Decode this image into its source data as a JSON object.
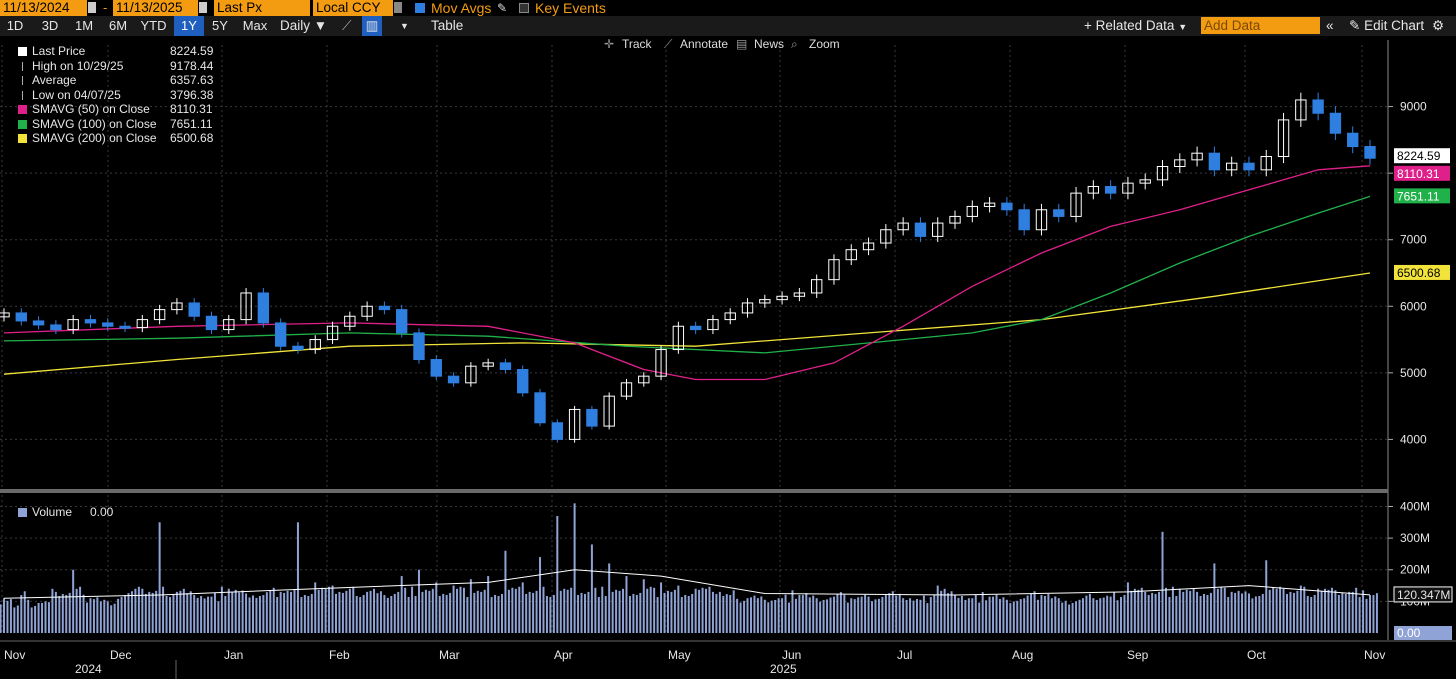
{
  "toolbar": {
    "start_date": "11/13/2024",
    "dash": "-",
    "end_date": "11/13/2025",
    "field": "Last Px",
    "currency": "Local CCY",
    "mov_avgs": "Mov Avgs",
    "key_events": "Key Events",
    "periods": [
      "1D",
      "3D",
      "1M",
      "6M",
      "YTD",
      "1Y",
      "5Y",
      "Max"
    ],
    "active_period": "1Y",
    "frequency": "Daily",
    "table": "Table",
    "related_data": "+ Related Data",
    "add_data_placeholder": "Add Data",
    "edit_chart": "Edit Chart",
    "tools": [
      "Track",
      "Annotate",
      "News",
      "Zoom"
    ]
  },
  "colors": {
    "sma50": "#e0208a",
    "sma100": "#21b14a",
    "sma200": "#f2e33a",
    "up_candle": "#ffffff",
    "down_candle": "#2f7fe0",
    "volume": "#8fa3d6",
    "volume_avg": "#ffffff",
    "background": "#000000",
    "accent": "#f39c12"
  },
  "legend": [
    {
      "name": "Last Price",
      "value": "8224.59",
      "color": "#ffffff"
    },
    {
      "name": "High on 10/29/25",
      "value": "9178.44",
      "color": ""
    },
    {
      "name": "Average",
      "value": "6357.63",
      "color": ""
    },
    {
      "name": "Low on 04/07/25",
      "value": "3796.38",
      "color": ""
    },
    {
      "name": "SMAVG (50)  on Close",
      "value": "8110.31",
      "color": "#e0208a"
    },
    {
      "name": "SMAVG (100)  on Close",
      "value": "7651.11",
      "color": "#21b14a"
    },
    {
      "name": "SMAVG (200)  on Close",
      "value": "6500.68",
      "color": "#f2e33a"
    }
  ],
  "volume_legend": {
    "name": "Volume",
    "value": "0.00"
  },
  "chart_data": {
    "type": "candlestick",
    "price_axis": {
      "ticks": [
        "9000",
        "8000",
        "7000",
        "6000",
        "5000",
        "4000"
      ],
      "ylim": [
        3300,
        9700
      ]
    },
    "volume_axis": {
      "ticks": [
        "400M",
        "300M",
        "200M",
        "100M"
      ],
      "ylim": [
        0,
        430
      ]
    },
    "x_months": [
      "Nov",
      "Dec",
      "Jan",
      "Feb",
      "Mar",
      "Apr",
      "May",
      "Jun",
      "Jul",
      "Aug",
      "Sep",
      "Oct",
      "Nov"
    ],
    "x_years": [
      "2024",
      "2025"
    ],
    "price_labels": {
      "last": "8224.59",
      "sma50": "8110.31",
      "sma100": "7651.11",
      "sma200": "6500.68"
    },
    "volume_labels": {
      "avg": "120.347M",
      "current": "0.00"
    },
    "weekly_close": [
      5900,
      5780,
      5720,
      5650,
      5800,
      5750,
      5700,
      5680,
      5800,
      5950,
      6050,
      5850,
      5650,
      5800,
      6200,
      5750,
      5400,
      5350,
      5500,
      5700,
      5850,
      6000,
      5950,
      5600,
      5200,
      4950,
      4850,
      5100,
      5150,
      5050,
      4700,
      4250,
      4000,
      4450,
      4200,
      4650,
      4850,
      4950,
      5350,
      5700,
      5650,
      5800,
      5900,
      6050,
      6100,
      6150,
      6200,
      6400,
      6700,
      6850,
      6950,
      7150,
      7250,
      7050,
      7250,
      7350,
      7500,
      7550,
      7450,
      7150,
      7450,
      7350,
      7700,
      7800,
      7700,
      7850,
      7900,
      8100,
      8200,
      8300,
      8050,
      8150,
      8050,
      8250,
      8800,
      9100,
      8900,
      8600,
      8400,
      8224.59
    ],
    "sma50": [
      [
        0,
        5600
      ],
      [
        10,
        5700
      ],
      [
        20,
        5750
      ],
      [
        28,
        5700
      ],
      [
        33,
        5450
      ],
      [
        37,
        5050
      ],
      [
        40,
        4900
      ],
      [
        44,
        4900
      ],
      [
        48,
        5150
      ],
      [
        52,
        5700
      ],
      [
        56,
        6300
      ],
      [
        60,
        6800
      ],
      [
        64,
        7200
      ],
      [
        68,
        7450
      ],
      [
        72,
        7750
      ],
      [
        76,
        8050
      ],
      [
        79,
        8110.31
      ]
    ],
    "sma100": [
      [
        0,
        5480
      ],
      [
        10,
        5520
      ],
      [
        20,
        5600
      ],
      [
        28,
        5550
      ],
      [
        36,
        5400
      ],
      [
        44,
        5300
      ],
      [
        52,
        5500
      ],
      [
        56,
        5600
      ],
      [
        60,
        5800
      ],
      [
        64,
        6200
      ],
      [
        68,
        6650
      ],
      [
        72,
        7050
      ],
      [
        76,
        7400
      ],
      [
        79,
        7651.11
      ]
    ],
    "sma200": [
      [
        0,
        4980
      ],
      [
        10,
        5200
      ],
      [
        20,
        5400
      ],
      [
        30,
        5450
      ],
      [
        40,
        5400
      ],
      [
        50,
        5600
      ],
      [
        60,
        5800
      ],
      [
        70,
        6150
      ],
      [
        79,
        6500.68
      ]
    ],
    "volume_m": [
      [
        0,
        110
      ],
      [
        1,
        120
      ],
      [
        2,
        95
      ],
      [
        3,
        130
      ],
      [
        4,
        200
      ],
      [
        5,
        110
      ],
      [
        6,
        100
      ],
      [
        7,
        120
      ],
      [
        8,
        140
      ],
      [
        9,
        350
      ],
      [
        10,
        130
      ],
      [
        11,
        120
      ],
      [
        12,
        115
      ],
      [
        13,
        140
      ],
      [
        14,
        125
      ],
      [
        15,
        120
      ],
      [
        16,
        130
      ],
      [
        17,
        350
      ],
      [
        18,
        160
      ],
      [
        19,
        150
      ],
      [
        20,
        140
      ],
      [
        21,
        130
      ],
      [
        22,
        120
      ],
      [
        23,
        180
      ],
      [
        24,
        200
      ],
      [
        25,
        160
      ],
      [
        26,
        150
      ],
      [
        27,
        170
      ],
      [
        28,
        180
      ],
      [
        29,
        260
      ],
      [
        30,
        160
      ],
      [
        31,
        240
      ],
      [
        32,
        370
      ],
      [
        33,
        410
      ],
      [
        34,
        280
      ],
      [
        35,
        220
      ],
      [
        36,
        180
      ],
      [
        37,
        170
      ],
      [
        38,
        160
      ],
      [
        39,
        150
      ],
      [
        40,
        140
      ],
      [
        41,
        130
      ],
      [
        42,
        120
      ],
      [
        43,
        110
      ],
      [
        44,
        105
      ],
      [
        45,
        110
      ],
      [
        46,
        120
      ],
      [
        47,
        110
      ],
      [
        48,
        115
      ],
      [
        49,
        110
      ],
      [
        50,
        115
      ],
      [
        51,
        120
      ],
      [
        52,
        110
      ],
      [
        53,
        105
      ],
      [
        54,
        150
      ],
      [
        55,
        120
      ],
      [
        56,
        110
      ],
      [
        57,
        115
      ],
      [
        58,
        105
      ],
      [
        59,
        110
      ],
      [
        60,
        120
      ],
      [
        61,
        110
      ],
      [
        62,
        100
      ],
      [
        63,
        110
      ],
      [
        64,
        115
      ],
      [
        65,
        160
      ],
      [
        66,
        130
      ],
      [
        67,
        320
      ],
      [
        68,
        140
      ],
      [
        69,
        130
      ],
      [
        70,
        220
      ],
      [
        71,
        130
      ],
      [
        72,
        125
      ],
      [
        73,
        230
      ],
      [
        74,
        140
      ],
      [
        75,
        150
      ],
      [
        76,
        140
      ],
      [
        77,
        135
      ],
      [
        78,
        130
      ],
      [
        79,
        120
      ]
    ],
    "volume_avg_m": [
      [
        0,
        110
      ],
      [
        9,
        120
      ],
      [
        18,
        140
      ],
      [
        28,
        160
      ],
      [
        33,
        200
      ],
      [
        38,
        180
      ],
      [
        44,
        125
      ],
      [
        55,
        120
      ],
      [
        65,
        130
      ],
      [
        72,
        150
      ],
      [
        79,
        120.347
      ]
    ],
    "notable_volume_spikes_m": [
      350,
      350,
      410,
      320,
      230
    ]
  }
}
